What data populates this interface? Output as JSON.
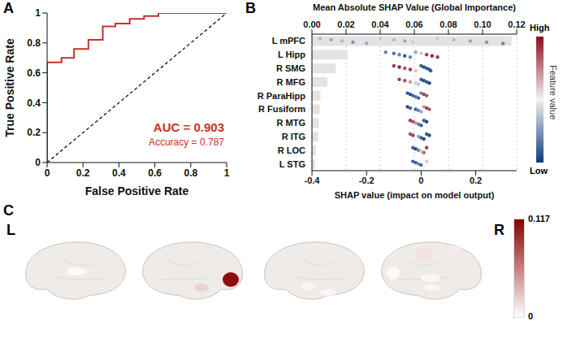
{
  "chart_data": [
    {
      "type": "line",
      "panel_label": "A",
      "x_label": "False Positive Rate",
      "y_label": "True Positive Rate",
      "xlim": [
        0,
        1
      ],
      "ylim": [
        0,
        1
      ],
      "xticks": [
        0,
        0.2,
        0.4,
        0.6,
        0.8,
        1
      ],
      "yticks": [
        0,
        0.2,
        0.4,
        0.6,
        0.8,
        1
      ],
      "grid": false,
      "series": [
        {
          "x": [
            0,
            0,
            0.08,
            0.08,
            0.15,
            0.15,
            0.23,
            0.23,
            0.31,
            0.31,
            0.38,
            0.38,
            0.46,
            0.46,
            0.54,
            0.54,
            0.62,
            0.62,
            1
          ],
          "values": [
            0,
            0.67,
            0.67,
            0.7,
            0.7,
            0.76,
            0.76,
            0.82,
            0.82,
            0.91,
            0.91,
            0.93,
            0.93,
            0.96,
            0.96,
            0.98,
            0.98,
            1,
            1
          ],
          "color": "#c8312b",
          "line_style": "solid"
        },
        {
          "x": [
            0,
            1
          ],
          "values": [
            0,
            1
          ],
          "color": "#000000",
          "line_style": "dashed"
        }
      ],
      "annotations": [
        {
          "text": "AUC = 0.903",
          "color": "#c8312b"
        },
        {
          "text": "Accuracy = 0.787",
          "color": "#c8312b"
        }
      ]
    },
    {
      "type": "bar",
      "orientation": "horizontal",
      "panel_label": "B",
      "title": "Mean Absolute SHAP Value (Global Importance)",
      "x_label": "SHAP value (impact on model output)",
      "categories": [
        "L mPFC",
        "L Hipp",
        "R SMG",
        "R MFG",
        "R ParaHipp",
        "R Fusiform",
        "R MTG",
        "R ITG",
        "R LOC",
        "L STG"
      ],
      "values": [
        0.117,
        0.021,
        0.014,
        0.009,
        0.005,
        0.0045,
        0.004,
        0.0037,
        0.0023,
        0.0018
      ],
      "color": "#e3e3e3",
      "xlim": [
        0,
        0.12
      ],
      "xticks": [
        {
          "value": 0,
          "label": "0.00"
        },
        0.02,
        0.04,
        0.06,
        0.08,
        {
          "value": 0.1,
          "label": "0.10"
        },
        0.12
      ],
      "grid": true,
      "shap": {
        "type": "scatter",
        "xlim": [
          -0.4,
          0.35
        ],
        "xticks": [
          -0.4,
          -0.2,
          0,
          0.2
        ],
        "points": [
          [
            [
              -0.37,
              0.35
            ],
            [
              -0.33,
              0.3
            ],
            [
              -0.29,
              0.35
            ],
            [
              -0.25,
              0.25
            ],
            [
              -0.2,
              0.3
            ],
            [
              -0.15,
              0.4
            ],
            [
              -0.1,
              0.35
            ],
            [
              -0.06,
              0.3
            ],
            [
              -0.03,
              0.4
            ],
            [
              0.02,
              0.45
            ],
            [
              0.06,
              0.6
            ],
            [
              0.12,
              0.65
            ],
            [
              0.18,
              0.7
            ],
            [
              0.24,
              0.75
            ],
            [
              0.3,
              0.8
            ]
          ],
          [
            [
              -0.13,
              0.2
            ],
            [
              -0.1,
              0.15
            ],
            [
              -0.08,
              0.2
            ],
            [
              -0.06,
              0.1
            ],
            [
              -0.04,
              0.2
            ],
            [
              -0.02,
              0.3
            ],
            [
              0,
              0.4
            ],
            [
              0.02,
              0.9
            ],
            [
              0.04,
              0.95
            ],
            [
              0.06,
              0.9
            ]
          ],
          [
            [
              -0.1,
              0.9
            ],
            [
              -0.08,
              0.95
            ],
            [
              -0.06,
              0.85
            ],
            [
              -0.04,
              0.9
            ],
            [
              -0.02,
              0.6
            ],
            [
              0,
              0.1
            ],
            [
              0.01,
              0.05
            ],
            [
              0.02,
              0.1
            ],
            [
              0.03,
              0.05
            ],
            [
              0.035,
              0.1
            ]
          ],
          [
            [
              -0.08,
              0.9
            ],
            [
              -0.06,
              0.85
            ],
            [
              -0.04,
              0.7
            ],
            [
              -0.02,
              0.6
            ],
            [
              -0.01,
              0.4
            ],
            [
              0,
              0.1
            ],
            [
              0.01,
              0.05
            ],
            [
              0.02,
              0.1
            ],
            [
              0.03,
              0.05
            ]
          ],
          [
            [
              -0.05,
              0.1
            ],
            [
              -0.04,
              0.05
            ],
            [
              -0.03,
              0.1
            ],
            [
              -0.02,
              0.15
            ],
            [
              -0.01,
              0.1
            ],
            [
              0,
              0.2
            ],
            [
              0.01,
              0.9
            ],
            [
              0.02,
              0.85
            ]
          ],
          [
            [
              -0.05,
              0.05
            ],
            [
              -0.04,
              0.1
            ],
            [
              -0.02,
              0.1
            ],
            [
              -0.01,
              0.2
            ],
            [
              0,
              0.3
            ],
            [
              0.01,
              0.7
            ],
            [
              0.02,
              0.9
            ],
            [
              0.03,
              0.85
            ]
          ],
          [
            [
              -0.04,
              0.9
            ],
            [
              -0.03,
              0.85
            ],
            [
              -0.02,
              0.7
            ],
            [
              -0.01,
              0.2
            ],
            [
              0,
              0.1
            ],
            [
              0.01,
              0.1
            ],
            [
              0.02,
              0.05
            ]
          ],
          [
            [
              -0.04,
              0.85
            ],
            [
              -0.03,
              0.9
            ],
            [
              -0.01,
              0.3
            ],
            [
              0,
              0.1
            ],
            [
              0.01,
              0.05
            ],
            [
              0.02,
              0.1
            ],
            [
              0.03,
              0.05
            ]
          ],
          [
            [
              -0.03,
              0.1
            ],
            [
              -0.02,
              0.05
            ],
            [
              -0.01,
              0.2
            ],
            [
              0,
              0.6
            ],
            [
              0.01,
              0.8
            ],
            [
              0.02,
              0.9
            ]
          ],
          [
            [
              -0.03,
              0.1
            ],
            [
              -0.02,
              0.1
            ],
            [
              -0.01,
              0.2
            ],
            [
              0,
              0.1
            ],
            [
              0.01,
              0.5
            ],
            [
              0.02,
              0.6
            ]
          ]
        ]
      },
      "colorbar": {
        "title": "Feature value",
        "high_label": "High",
        "low_label": "Low",
        "colors": [
          "#0b3a80",
          "#f2f2f2",
          "#8b0d1e"
        ]
      }
    }
  ],
  "brain_map": {
    "panel_label": "C",
    "hemisphere_labels": [
      "L",
      "R"
    ],
    "colorbar": {
      "range": [
        0,
        0.117
      ],
      "ticks": [
        0,
        0.117
      ],
      "colors": [
        "#ffffff",
        "#8b0000"
      ]
    }
  }
}
